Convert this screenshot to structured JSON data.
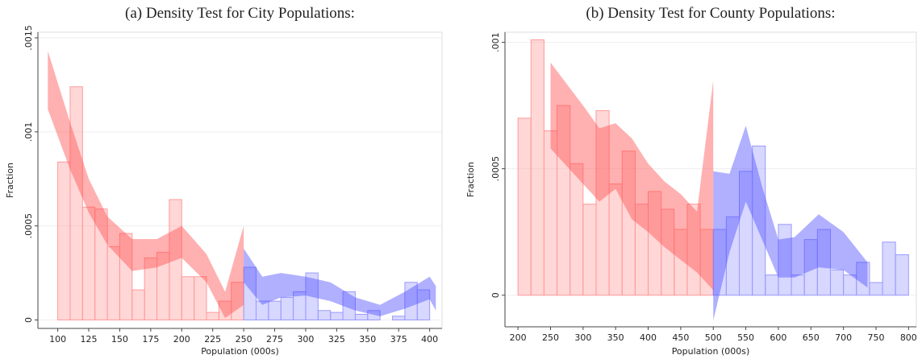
{
  "chart_data": [
    {
      "type": "histogram",
      "title": "(a)  Density Test for City Populations:",
      "xlabel": "Population (000s)",
      "ylabel": "Fraction",
      "xlim": [
        84,
        410
      ],
      "ylim": [
        -4.5e-05,
        0.00153
      ],
      "xticks": [
        100,
        125,
        150,
        175,
        200,
        225,
        250,
        275,
        300,
        325,
        350,
        375,
        400
      ],
      "yticks": [
        0,
        {
          "value": 0.0005,
          "label": ".0005"
        },
        {
          "value": 0.001,
          "label": ".001"
        },
        {
          "value": 0.0015,
          "label": ".0015"
        }
      ],
      "grid": true,
      "bins": [
        100,
        110,
        120,
        130,
        140,
        150,
        160,
        170,
        180,
        190,
        200,
        210,
        220,
        230,
        240,
        250,
        260,
        270,
        280,
        290,
        300,
        310,
        320,
        330,
        340,
        350,
        360,
        370,
        380,
        390,
        400
      ],
      "values": [
        0.00084,
        0.00124,
        0.0006,
        0.00059,
        0.00039,
        0.00046,
        0.00016,
        0.00033,
        0.00036,
        0.00064,
        0.00023,
        0.00023,
        4e-05,
        0.0001,
        0.0002,
        0.00028,
        0.0001,
        0.0001,
        0.00012,
        0.00015,
        0.00025,
        5e-05,
        4e-05,
        0.00015,
        3e-05,
        5e-05,
        0,
        2e-05,
        0.0002,
        0.00016
      ],
      "colors": [
        "#ff9a9a",
        "#ff9a9a",
        "#ff9a9a",
        "#ff9a9a",
        "#ff9a9a",
        "#ff9a9a",
        "#ff9a9a",
        "#ff9a9a",
        "#ff9a9a",
        "#ff9a9a",
        "#ff9a9a",
        "#ff9a9a",
        "#ff9a9a",
        "#ff9a9a",
        "#ff9a9a",
        "#9a9aff",
        "#9a9aff",
        "#9a9aff",
        "#9a9aff",
        "#9a9aff",
        "#9a9aff",
        "#9a9aff",
        "#9a9aff",
        "#9a9aff",
        "#9a9aff",
        "#9a9aff",
        "#9a9aff",
        "#9a9aff",
        "#9a9aff",
        "#9a9aff"
      ],
      "bands": [
        {
          "color": "#ff5050",
          "x": [
            92,
            110,
            125,
            140,
            160,
            180,
            200,
            220,
            235,
            250
          ],
          "upper": [
            0.00143,
            0.00105,
            0.00075,
            0.00055,
            0.00043,
            0.00043,
            0.0005,
            0.00035,
            0.00015,
            0.0005
          ],
          "lower": [
            0.00112,
            0.0008,
            0.00057,
            0.0004,
            0.00026,
            0.00028,
            0.00033,
            0.0002,
            1e-05,
            8e-05
          ]
        },
        {
          "color": "#5050ff",
          "x": [
            250,
            265,
            280,
            300,
            320,
            340,
            360,
            380,
            400,
            405
          ],
          "upper": [
            0.00038,
            0.00023,
            0.00025,
            0.00023,
            0.0002,
            0.00012,
            8e-05,
            0.00015,
            0.00023,
            0.00018
          ],
          "lower": [
            0.0002,
            8e-05,
            0.00012,
            0.00013,
            0.0001,
            5e-05,
            2e-05,
            6e-05,
            0.00011,
            5e-05
          ]
        }
      ]
    },
    {
      "type": "histogram",
      "title": "(b)  Density Test for County Populations:",
      "xlabel": "Population (000s)",
      "ylabel": "Fraction",
      "xlim": [
        180,
        812
      ],
      "ylim": [
        -0.000125,
        0.00104
      ],
      "xticks": [
        200,
        250,
        300,
        350,
        400,
        450,
        500,
        550,
        600,
        650,
        700,
        750,
        800
      ],
      "yticks": [
        0,
        {
          "value": 0.0005,
          "label": ".0005"
        },
        {
          "value": 0.001,
          "label": ".001"
        }
      ],
      "grid": true,
      "bins": [
        200,
        220,
        240,
        260,
        280,
        300,
        320,
        340,
        360,
        380,
        400,
        420,
        440,
        460,
        480,
        500,
        520,
        540,
        560,
        580,
        600,
        620,
        640,
        660,
        680,
        700,
        720,
        740,
        760,
        780,
        800
      ],
      "values": [
        0.0007,
        0.00101,
        0.00065,
        0.00075,
        0.00052,
        0.00036,
        0.00073,
        0.00044,
        0.00057,
        0.00036,
        0.00041,
        0.00034,
        0.00026,
        0.00036,
        0.00026,
        0.00026,
        0.00031,
        0.00049,
        0.00059,
        8e-05,
        0.00028,
        8e-05,
        0.00022,
        0.00026,
        0.0001,
        8e-05,
        0.00013,
        5e-05,
        0.00021,
        0.00016
      ],
      "colors": [
        "#ff9a9a",
        "#ff9a9a",
        "#ff9a9a",
        "#ff9a9a",
        "#ff9a9a",
        "#ff9a9a",
        "#ff9a9a",
        "#ff9a9a",
        "#ff9a9a",
        "#ff9a9a",
        "#ff9a9a",
        "#ff9a9a",
        "#ff9a9a",
        "#ff9a9a",
        "#ff9a9a",
        "#9a9aff",
        "#9a9aff",
        "#9a9aff",
        "#9a9aff",
        "#9a9aff",
        "#9a9aff",
        "#9a9aff",
        "#9a9aff",
        "#9a9aff",
        "#9a9aff",
        "#9a9aff",
        "#9a9aff",
        "#9a9aff",
        "#9a9aff",
        "#9a9aff"
      ],
      "bands": [
        {
          "color": "#ff5050",
          "x": [
            250,
            300,
            325,
            350,
            375,
            400,
            425,
            450,
            475,
            500
          ],
          "upper": [
            0.00092,
            0.00075,
            0.00066,
            0.00068,
            0.00062,
            0.00052,
            0.00045,
            0.0004,
            0.00033,
            0.00085
          ],
          "lower": [
            0.00058,
            0.00044,
            0.00037,
            0.00042,
            0.0003,
            0.00025,
            0.00019,
            0.00014,
            9e-05,
            2e-05
          ]
        },
        {
          "color": "#5050ff",
          "x": [
            500,
            525,
            550,
            575,
            600,
            625,
            662,
            700,
            737
          ],
          "upper": [
            0.00049,
            0.00048,
            0.00067,
            0.00043,
            0.00022,
            0.00023,
            0.00032,
            0.00025,
            0.00013
          ],
          "lower": [
            -0.0001,
            0.00017,
            0.00037,
            0.00022,
            7e-05,
            7e-05,
            0.00011,
            0.0001,
            3e-05
          ]
        }
      ]
    }
  ]
}
